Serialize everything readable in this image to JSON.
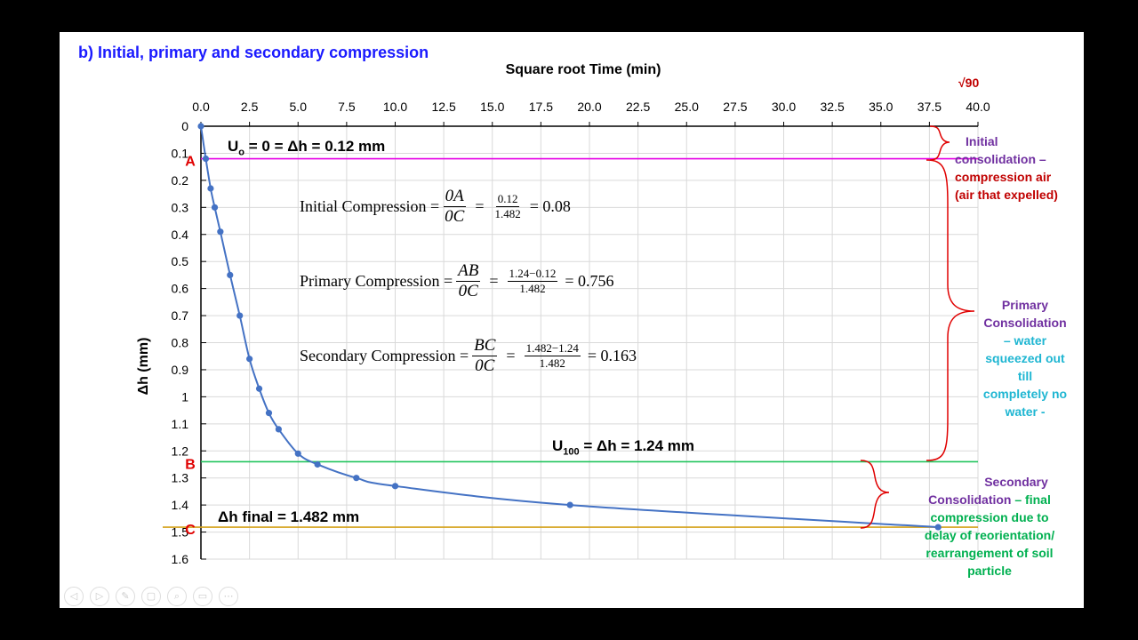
{
  "slide_title": "b) Initial, primary and secondary compression",
  "chart_data": {
    "type": "scatter",
    "xlabel": "Square root Time (min)",
    "ylabel": "Δh (mm)",
    "xlim": [
      0,
      40
    ],
    "ylim": [
      0,
      1.6
    ],
    "x_ticks": [
      "0.0",
      "2.5",
      "5.0",
      "7.5",
      "10.0",
      "12.5",
      "15.0",
      "17.5",
      "20.0",
      "22.5",
      "25.0",
      "27.5",
      "30.0",
      "32.5",
      "35.0",
      "37.5",
      "40.0"
    ],
    "y_ticks": [
      "0",
      "0.1",
      "0.2",
      "0.3",
      "0.4",
      "0.5",
      "0.6",
      "0.7",
      "0.8",
      "0.9",
      "1",
      "1.1",
      "1.2",
      "1.3",
      "1.4",
      "1.5",
      "1.6"
    ],
    "grid": true,
    "y_inverted": true,
    "x_axis_position": "top",
    "series": [
      {
        "color": "#4472c4",
        "x": [
          0,
          0.25,
          0.5,
          0.71,
          1.0,
          1.5,
          2.0,
          2.5,
          3.0,
          3.5,
          4.0,
          5.0,
          6.0,
          8.0,
          10.0,
          19.0,
          37.95
        ],
        "y": [
          0.0,
          0.12,
          0.23,
          0.3,
          0.39,
          0.55,
          0.7,
          0.86,
          0.97,
          1.06,
          1.12,
          1.21,
          1.25,
          1.3,
          1.33,
          1.4,
          1.482
        ]
      }
    ],
    "reference_lines": [
      {
        "value": 0.12,
        "color": "#e600e6",
        "marker": "A"
      },
      {
        "value": 1.24,
        "color": "#22c55e",
        "marker": "B"
      },
      {
        "value": 1.482,
        "color": "#d4a017",
        "marker": "C"
      }
    ],
    "sqrt_label": "√90",
    "line_labels": {
      "u0": "Uo = 0 = Δh = 0.12 mm",
      "u100": "U100 = Δh = 1.24 mm",
      "final": "Δh final = 1.482 mm"
    }
  },
  "equations": {
    "initial": {
      "label": "Initial Compression =",
      "frac_num": "0A",
      "frac_den": "0C",
      "eq": "=",
      "num": "0.12",
      "den": "1.482",
      "result": "= 0.08"
    },
    "primary": {
      "label": "Primary Compression =",
      "frac_num": "AB",
      "frac_den": "0C",
      "eq": "=",
      "num": "1.24−0.12",
      "den": "1.482",
      "result": "= 0.756"
    },
    "secondary": {
      "label": "Secondary Compression =",
      "frac_num": "BC",
      "frac_den": "0C",
      "eq": "=",
      "num": "1.482−1.24",
      "den": "1.482",
      "result": "= 0.163"
    }
  },
  "annotations": {
    "initial_a": "Initial",
    "initial_b": "consolidation –",
    "initial_c": "compression air",
    "initial_d": "(air that expelled)",
    "primary_a": "Primary",
    "primary_b": "Consolidation",
    "primary_c": "– water",
    "primary_d": "squeezed out",
    "primary_e": "till",
    "primary_f": "completely no",
    "primary_g": "water -",
    "secondary_a": "Secondary",
    "secondary_b": "Consolidation",
    "secondary_c": "– final",
    "secondary_d": "compression due to",
    "secondary_e": "delay of reorientation/",
    "secondary_f": "rearrangement of soil",
    "secondary_g": "particle"
  },
  "colors": {
    "title": "#1a1aff",
    "purple": "#7030a0",
    "dark_red": "#c00000",
    "cyan": "#1fb6d2",
    "green": "#00b050",
    "brace": "#e00000",
    "marker_letter": "#e00000"
  }
}
